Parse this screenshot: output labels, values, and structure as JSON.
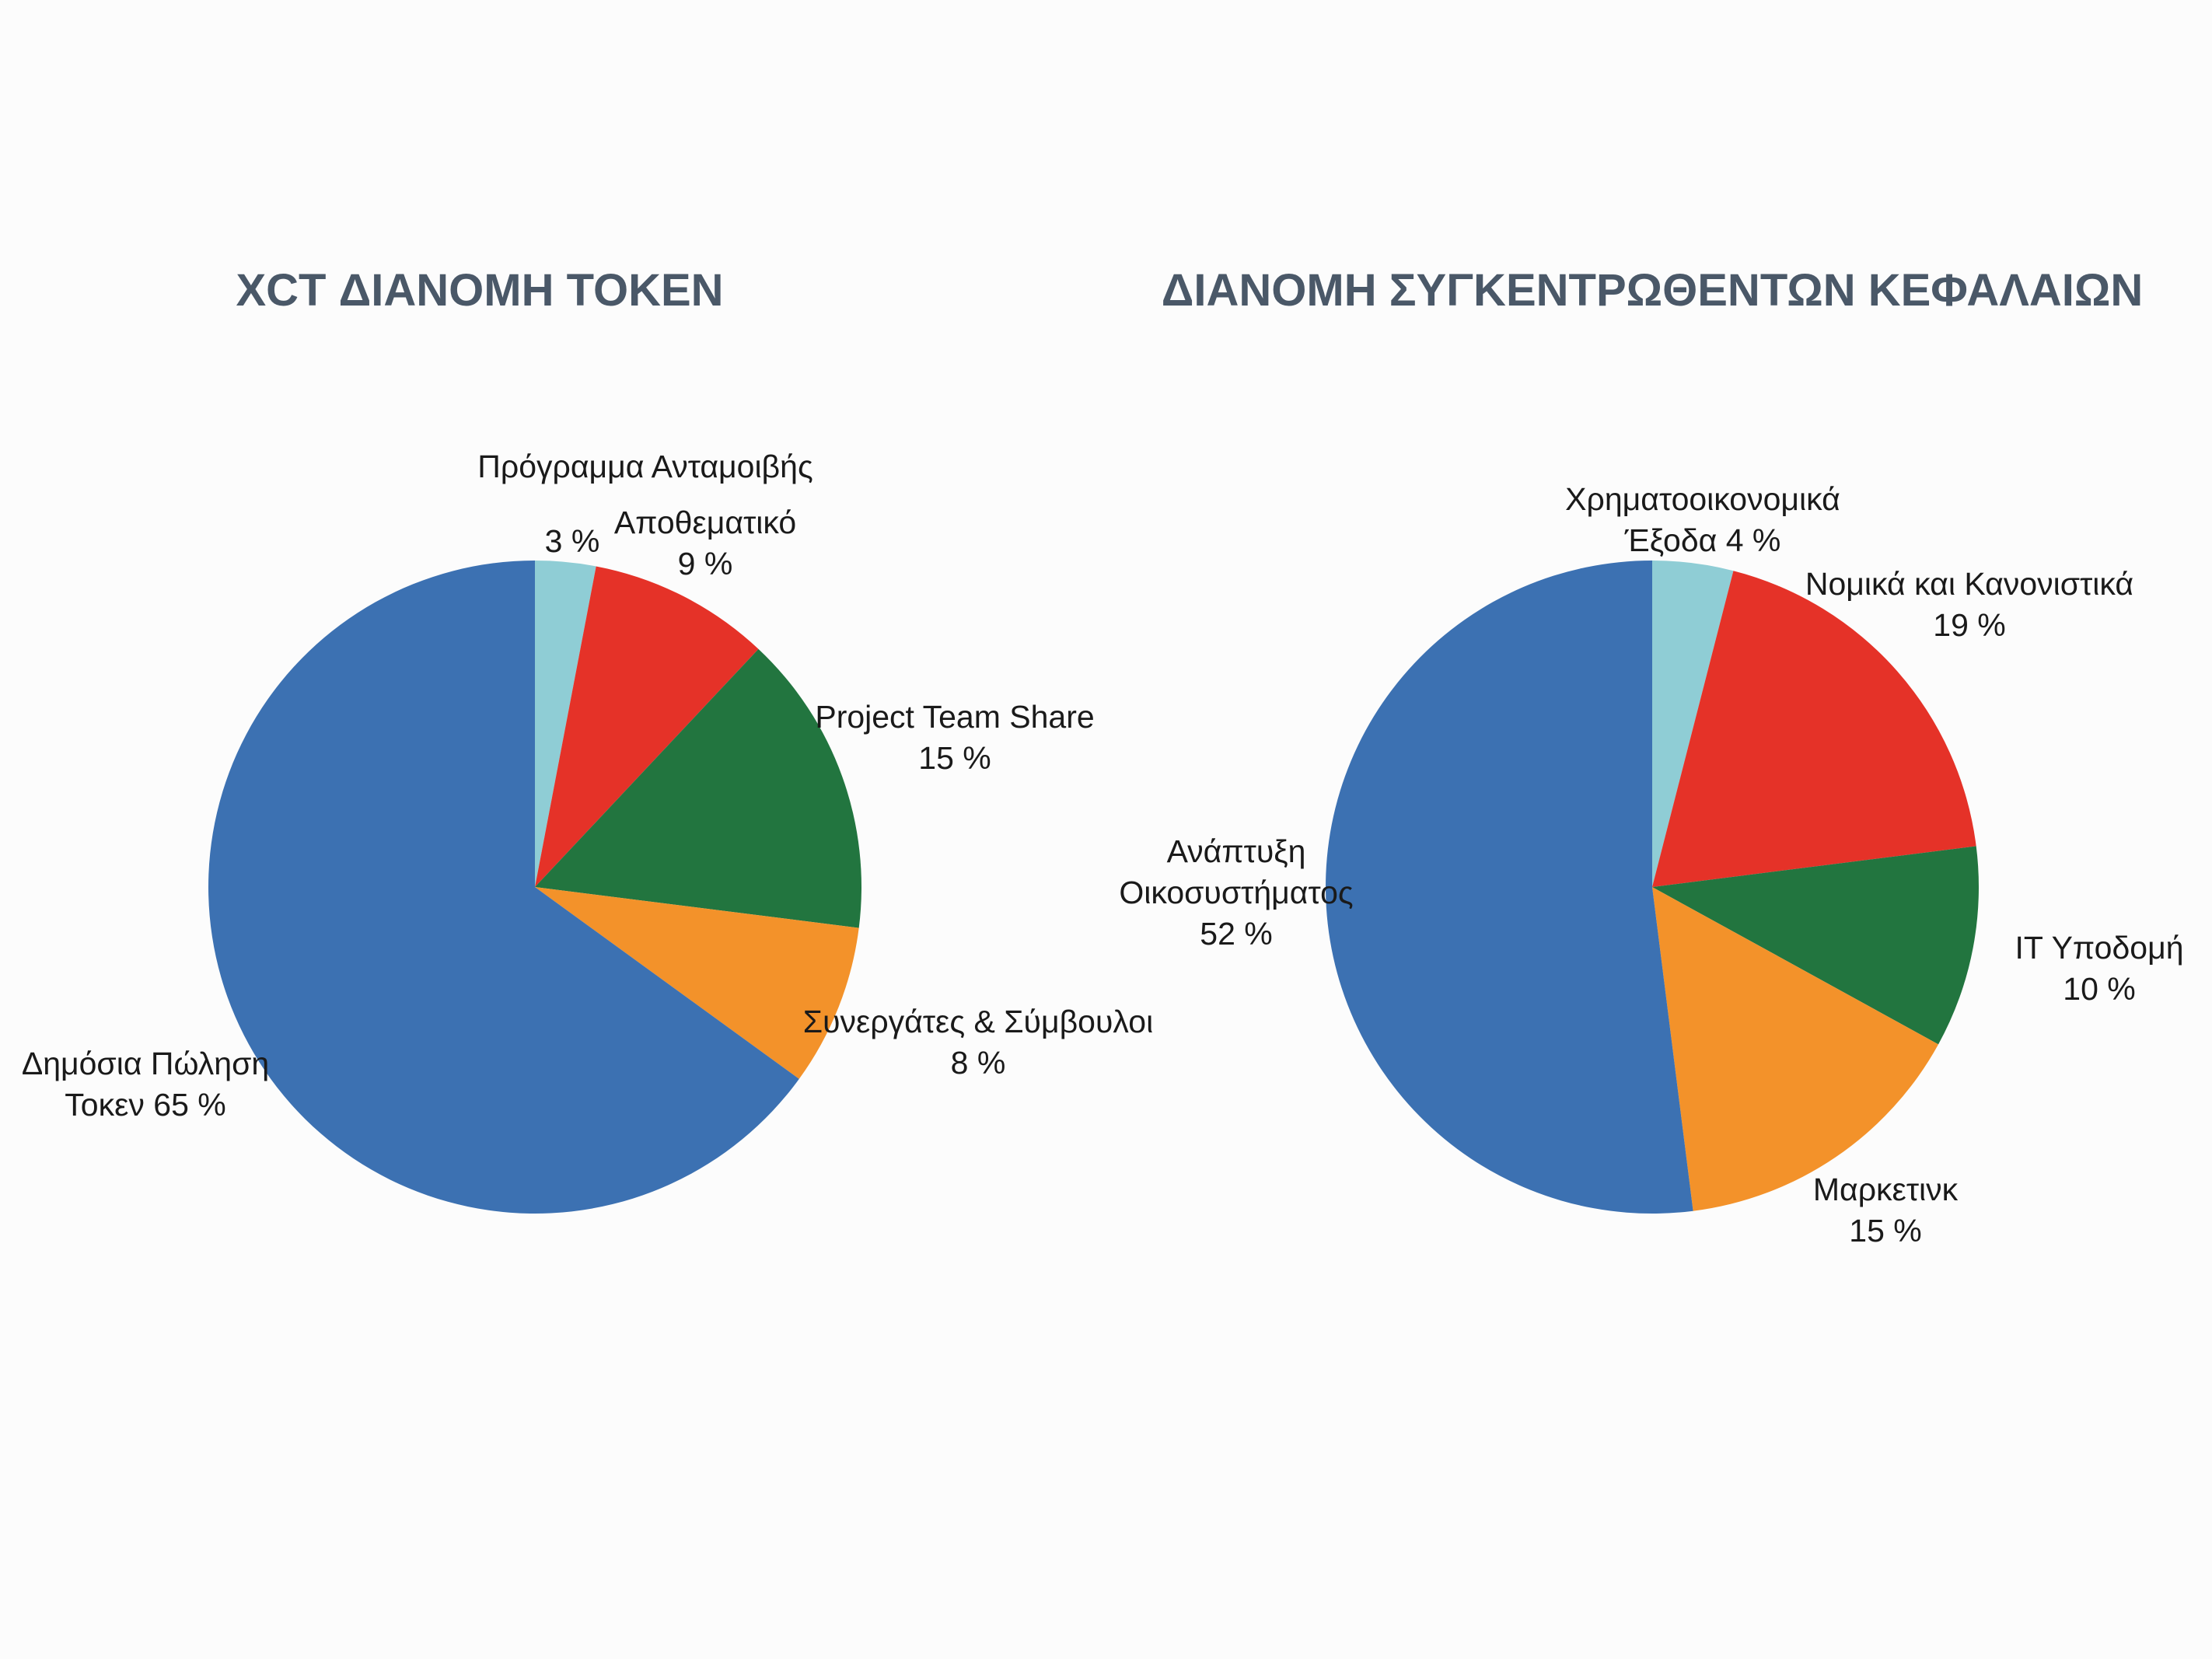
{
  "chart_data": [
    {
      "type": "pie",
      "title": "XCT ΔΙΑΝΟΜΗ ΤΟΚΕΝ",
      "slices": [
        {
          "label_lines": [
            "Πρόγραμμα Ανταμοιβής",
            "3 %"
          ],
          "value": 3,
          "color": "#8fcdd5"
        },
        {
          "label_lines": [
            "Αποθεματικό",
            "9 %"
          ],
          "value": 9,
          "color": "#e53228"
        },
        {
          "label_lines": [
            "Project Team Share",
            "15 %"
          ],
          "value": 15,
          "color": "#22753f"
        },
        {
          "label_lines": [
            "Συνεργάτες & Σύμβουλοι",
            "8 %"
          ],
          "value": 8,
          "color": "#f3922a"
        },
        {
          "label_lines": [
            "Δημόσια Πώληση",
            "Τοκεν 65 %"
          ],
          "value": 65,
          "color": "#3c71b2"
        }
      ]
    },
    {
      "type": "pie",
      "title": "ΔΙΑΝΟΜΗ ΣΥΓΚΕΝΤΡΩΘΕΝΤΩΝ ΚΕΦΑΛΑΙΩΝ",
      "slices": [
        {
          "label_lines": [
            "Χρηματοοικονομικά",
            "Έξοδα 4 %"
          ],
          "value": 4,
          "color": "#8fcdd5"
        },
        {
          "label_lines": [
            "Νομικά και Κανονιστικά",
            "19 %"
          ],
          "value": 19,
          "color": "#e53228"
        },
        {
          "label_lines": [
            "IT Υποδομή",
            "10 %"
          ],
          "value": 10,
          "color": "#22753f"
        },
        {
          "label_lines": [
            "Μαρκετινκ",
            "15 %"
          ],
          "value": 15,
          "color": "#f3922a"
        },
        {
          "label_lines": [
            "Ανάπτυξη",
            "Οικοσυστήματος",
            "52 %"
          ],
          "value": 52,
          "color": "#3c71b2"
        }
      ]
    }
  ]
}
